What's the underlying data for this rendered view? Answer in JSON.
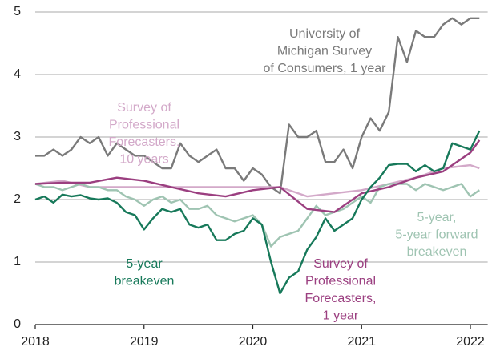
{
  "chart_data": {
    "type": "line",
    "xlim": [
      2018,
      2022.1
    ],
    "xticks": [
      2018,
      2019,
      2020,
      2021,
      2022
    ],
    "ylim": [
      0,
      5
    ],
    "yticks": [
      0,
      1,
      2,
      3,
      4,
      5
    ],
    "grid": true,
    "series": [
      {
        "name": [
          "University of",
          "Michigan Survey",
          "of Consumers, 1 year"
        ],
        "color": "#7a7a7a",
        "x": [
          2018,
          2018.083,
          2018.167,
          2018.25,
          2018.333,
          2018.417,
          2018.5,
          2018.583,
          2018.667,
          2018.75,
          2018.833,
          2018.917,
          2019,
          2019.083,
          2019.167,
          2019.25,
          2019.333,
          2019.417,
          2019.5,
          2019.583,
          2019.667,
          2019.75,
          2019.833,
          2019.917,
          2020,
          2020.083,
          2020.167,
          2020.25,
          2020.333,
          2020.417,
          2020.5,
          2020.583,
          2020.667,
          2020.75,
          2020.833,
          2020.917,
          2021,
          2021.083,
          2021.167,
          2021.25,
          2021.333,
          2021.417,
          2021.5,
          2021.583,
          2021.667,
          2021.75,
          2021.833,
          2021.917,
          2022,
          2022.083
        ],
        "values": [
          2.7,
          2.7,
          2.8,
          2.7,
          2.8,
          3.0,
          2.9,
          3.0,
          2.7,
          2.9,
          2.8,
          2.7,
          2.7,
          2.6,
          2.5,
          2.5,
          2.9,
          2.7,
          2.6,
          2.7,
          2.8,
          2.5,
          2.5,
          2.3,
          2.5,
          2.4,
          2.2,
          2.1,
          3.2,
          3.0,
          3.0,
          3.1,
          2.6,
          2.6,
          2.8,
          2.5,
          3.0,
          3.3,
          3.1,
          3.4,
          4.6,
          4.2,
          4.7,
          4.6,
          4.6,
          4.8,
          4.9,
          4.8,
          4.9,
          4.9
        ]
      },
      {
        "name": [
          "Survey of",
          "Professional",
          "Forecasters,",
          "10 years"
        ],
        "color": "#d3a9c9",
        "x": [
          2018,
          2018.25,
          2018.5,
          2018.75,
          2019,
          2019.25,
          2019.5,
          2019.75,
          2020,
          2020.25,
          2020.5,
          2020.75,
          2021,
          2021.25,
          2021.5,
          2021.75,
          2022,
          2022.083
        ],
        "values": [
          2.25,
          2.3,
          2.2,
          2.2,
          2.2,
          2.2,
          2.2,
          2.2,
          2.2,
          2.2,
          2.05,
          2.1,
          2.15,
          2.25,
          2.35,
          2.5,
          2.55,
          2.5
        ]
      },
      {
        "name": [
          "5-year,",
          "5-year forward",
          "breakeven"
        ],
        "color": "#9fc4b2",
        "x": [
          2018,
          2018.083,
          2018.167,
          2018.25,
          2018.333,
          2018.417,
          2018.5,
          2018.583,
          2018.667,
          2018.75,
          2018.833,
          2018.917,
          2019,
          2019.083,
          2019.167,
          2019.25,
          2019.333,
          2019.417,
          2019.5,
          2019.583,
          2019.667,
          2019.75,
          2019.833,
          2019.917,
          2020,
          2020.083,
          2020.167,
          2020.25,
          2020.333,
          2020.417,
          2020.5,
          2020.583,
          2020.667,
          2020.75,
          2020.833,
          2020.917,
          2021,
          2021.083,
          2021.167,
          2021.25,
          2021.333,
          2021.417,
          2021.5,
          2021.583,
          2021.667,
          2021.75,
          2021.833,
          2021.917,
          2022,
          2022.083
        ],
        "values": [
          2.25,
          2.2,
          2.2,
          2.15,
          2.2,
          2.25,
          2.2,
          2.2,
          2.15,
          2.15,
          2.05,
          2.0,
          1.9,
          2.0,
          2.05,
          1.95,
          2.0,
          1.85,
          1.85,
          1.9,
          1.75,
          1.7,
          1.65,
          1.7,
          1.75,
          1.6,
          1.25,
          1.4,
          1.45,
          1.5,
          1.7,
          1.9,
          1.75,
          1.8,
          1.85,
          1.95,
          2.05,
          1.95,
          2.2,
          2.25,
          2.25,
          2.25,
          2.15,
          2.25,
          2.2,
          2.15,
          2.2,
          2.25,
          2.05,
          2.15
        ]
      },
      {
        "name": [
          "Survey of",
          "Professional",
          "Forecasters,",
          "1 year"
        ],
        "color": "#9b3f80",
        "x": [
          2018,
          2018.25,
          2018.5,
          2018.75,
          2019,
          2019.25,
          2019.5,
          2019.75,
          2020,
          2020.25,
          2020.5,
          2020.75,
          2021,
          2021.25,
          2021.5,
          2021.75,
          2022,
          2022.083
        ],
        "values": [
          2.25,
          2.27,
          2.27,
          2.35,
          2.3,
          2.2,
          2.1,
          2.05,
          2.15,
          2.2,
          1.85,
          1.8,
          2.1,
          2.2,
          2.35,
          2.45,
          2.75,
          2.95
        ]
      },
      {
        "name": [
          "5-year",
          "breakeven"
        ],
        "color": "#17795a",
        "x": [
          2018,
          2018.083,
          2018.167,
          2018.25,
          2018.333,
          2018.417,
          2018.5,
          2018.583,
          2018.667,
          2018.75,
          2018.833,
          2018.917,
          2019,
          2019.083,
          2019.167,
          2019.25,
          2019.333,
          2019.417,
          2019.5,
          2019.583,
          2019.667,
          2019.75,
          2019.833,
          2019.917,
          2020,
          2020.083,
          2020.167,
          2020.25,
          2020.333,
          2020.417,
          2020.5,
          2020.583,
          2020.667,
          2020.75,
          2020.833,
          2020.917,
          2021,
          2021.083,
          2021.167,
          2021.25,
          2021.333,
          2021.417,
          2021.5,
          2021.583,
          2021.667,
          2021.75,
          2021.833,
          2021.917,
          2022,
          2022.083
        ],
        "values": [
          2.0,
          2.05,
          1.95,
          2.08,
          2.05,
          2.07,
          2.02,
          2.0,
          2.02,
          1.95,
          1.8,
          1.75,
          1.52,
          1.7,
          1.85,
          1.8,
          1.85,
          1.6,
          1.55,
          1.6,
          1.35,
          1.35,
          1.45,
          1.5,
          1.7,
          1.6,
          1.0,
          0.5,
          0.75,
          0.85,
          1.2,
          1.4,
          1.7,
          1.5,
          1.6,
          1.7,
          2.0,
          2.2,
          2.35,
          2.55,
          2.57,
          2.57,
          2.45,
          2.55,
          2.45,
          2.5,
          2.9,
          2.85,
          2.8,
          3.1
        ]
      }
    ]
  }
}
